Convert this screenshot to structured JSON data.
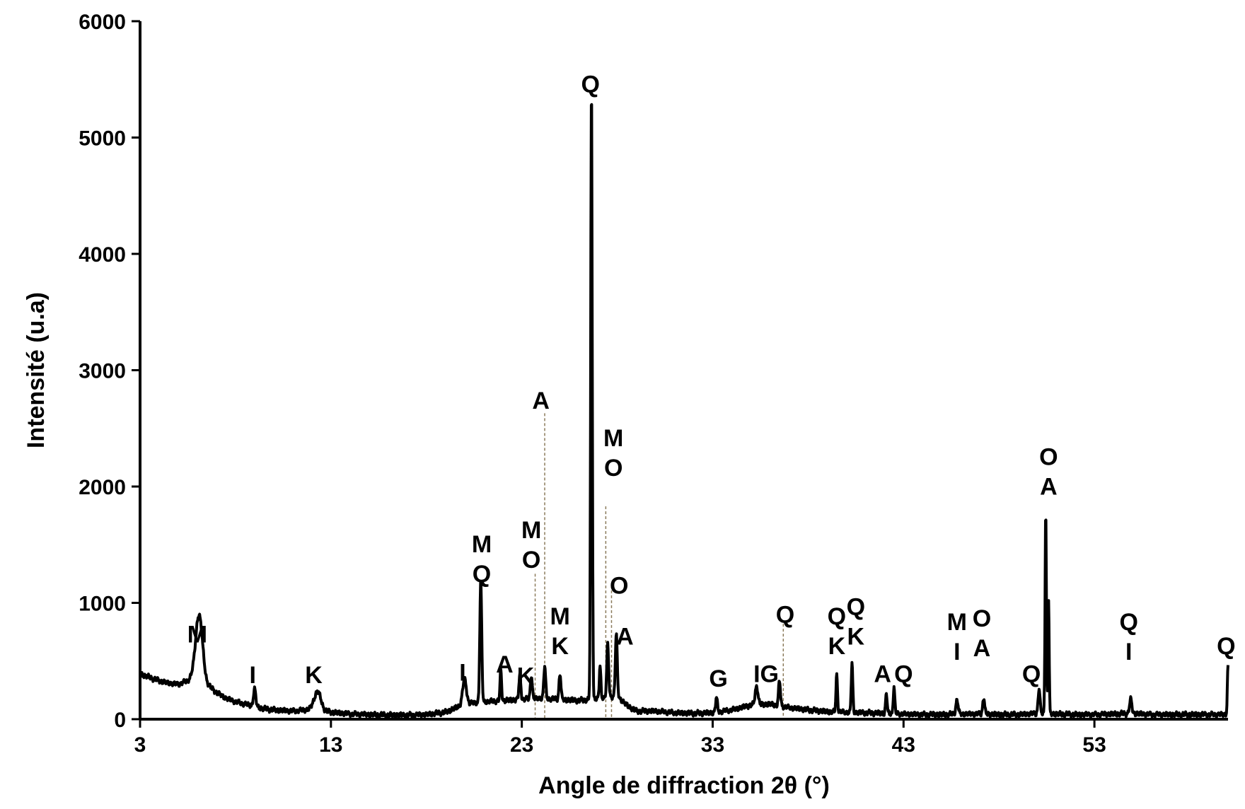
{
  "chart_data": {
    "type": "line",
    "title": "",
    "xlabel": "Angle de diffraction 2θ (°)",
    "ylabel": "Intensité (u.a)",
    "xlim": [
      3,
      60
    ],
    "ylim": [
      0,
      6000
    ],
    "x_ticks": [
      3,
      13,
      23,
      33,
      43,
      53
    ],
    "x_tick_labels": [
      "3",
      "13",
      "23",
      "33",
      "43",
      "53"
    ],
    "y_ticks": [
      0,
      1000,
      2000,
      3000,
      4000,
      5000,
      6000
    ],
    "y_tick_labels": [
      "0",
      "1000",
      "2000",
      "3000",
      "4000",
      "5000",
      "6000"
    ],
    "grid": false,
    "legend": "none",
    "baseline": [
      [
        3,
        390
      ],
      [
        3.5,
        360
      ],
      [
        4,
        330
      ],
      [
        4.5,
        310
      ],
      [
        5,
        300
      ],
      [
        5.5,
        330
      ],
      [
        6,
        420
      ],
      [
        6.5,
        300
      ],
      [
        7,
        230
      ],
      [
        7.5,
        180
      ],
      [
        8,
        150
      ],
      [
        8.5,
        130
      ],
      [
        9,
        110
      ],
      [
        9.5,
        90
      ],
      [
        10,
        80
      ],
      [
        11,
        70
      ],
      [
        12,
        85
      ],
      [
        13,
        60
      ],
      [
        14,
        45
      ],
      [
        15,
        40
      ],
      [
        16,
        35
      ],
      [
        17,
        35
      ],
      [
        18,
        40
      ],
      [
        19,
        60
      ],
      [
        20,
        130
      ],
      [
        21,
        150
      ],
      [
        22,
        160
      ],
      [
        23,
        170
      ],
      [
        24,
        180
      ],
      [
        25,
        170
      ],
      [
        26,
        160
      ],
      [
        27,
        180
      ],
      [
        28,
        200
      ],
      [
        28.5,
        120
      ],
      [
        29,
        70
      ],
      [
        30,
        70
      ],
      [
        31,
        55
      ],
      [
        32,
        50
      ],
      [
        33,
        55
      ],
      [
        34,
        80
      ],
      [
        35,
        120
      ],
      [
        36,
        130
      ],
      [
        37,
        100
      ],
      [
        38,
        80
      ],
      [
        39,
        65
      ],
      [
        40,
        60
      ],
      [
        41,
        55
      ],
      [
        42,
        50
      ],
      [
        43,
        45
      ],
      [
        44,
        40
      ],
      [
        45,
        40
      ],
      [
        46,
        45
      ],
      [
        47,
        45
      ],
      [
        48,
        40
      ],
      [
        49,
        40
      ],
      [
        50,
        50
      ],
      [
        51,
        45
      ],
      [
        52,
        40
      ],
      [
        53,
        40
      ],
      [
        54,
        45
      ],
      [
        55,
        50
      ],
      [
        56,
        40
      ],
      [
        57,
        40
      ],
      [
        58,
        40
      ],
      [
        59,
        40
      ],
      [
        60,
        40
      ]
    ],
    "peaks": [
      {
        "x": 6.1,
        "y": 500,
        "w": 0.35
      },
      {
        "x": 9.0,
        "y": 150,
        "w": 0.12
      },
      {
        "x": 12.3,
        "y": 160,
        "w": 0.35
      },
      {
        "x": 20.0,
        "y": 210,
        "w": 0.2
      },
      {
        "x": 20.85,
        "y": 1040,
        "w": 0.1
      },
      {
        "x": 21.9,
        "y": 260,
        "w": 0.08
      },
      {
        "x": 22.9,
        "y": 210,
        "w": 0.1
      },
      {
        "x": 23.5,
        "y": 200,
        "w": 0.1
      },
      {
        "x": 24.2,
        "y": 270,
        "w": 0.1
      },
      {
        "x": 25.0,
        "y": 220,
        "w": 0.1
      },
      {
        "x": 26.65,
        "y": 5260,
        "w": 0.08
      },
      {
        "x": 27.1,
        "y": 270,
        "w": 0.08
      },
      {
        "x": 27.5,
        "y": 450,
        "w": 0.1
      },
      {
        "x": 27.95,
        "y": 530,
        "w": 0.1
      },
      {
        "x": 33.2,
        "y": 120,
        "w": 0.1
      },
      {
        "x": 35.3,
        "y": 160,
        "w": 0.15
      },
      {
        "x": 36.5,
        "y": 210,
        "w": 0.1
      },
      {
        "x": 39.5,
        "y": 320,
        "w": 0.08
      },
      {
        "x": 40.3,
        "y": 420,
        "w": 0.08
      },
      {
        "x": 42.1,
        "y": 170,
        "w": 0.08
      },
      {
        "x": 42.5,
        "y": 230,
        "w": 0.08
      },
      {
        "x": 45.8,
        "y": 120,
        "w": 0.12
      },
      {
        "x": 47.2,
        "y": 140,
        "w": 0.1
      },
      {
        "x": 50.1,
        "y": 210,
        "w": 0.1
      },
      {
        "x": 50.45,
        "y": 1740,
        "w": 0.07
      },
      {
        "x": 50.6,
        "y": 980,
        "w": 0.06
      },
      {
        "x": 54.9,
        "y": 120,
        "w": 0.12
      },
      {
        "x": 60.0,
        "y": 420,
        "w": 0.07
      }
    ],
    "annotations": [
      {
        "lines": [
          "M"
        ],
        "x": 6.0,
        "y": 660
      },
      {
        "lines": [
          "I"
        ],
        "x": 8.9,
        "y": 310
      },
      {
        "lines": [
          "K"
        ],
        "x": 12.1,
        "y": 310
      },
      {
        "lines": [
          "I"
        ],
        "x": 19.9,
        "y": 330
      },
      {
        "lines": [
          "M",
          "Q"
        ],
        "x": 20.9,
        "y": 1180
      },
      {
        "lines": [
          "A"
        ],
        "x": 22.1,
        "y": 400
      },
      {
        "lines": [
          "K"
        ],
        "x": 23.2,
        "y": 300
      },
      {
        "lines": [
          "M",
          "O"
        ],
        "x": 23.5,
        "y": 1300
      },
      {
        "lines": [
          "A"
        ],
        "x": 24.0,
        "y": 2670
      },
      {
        "lines": [
          "M",
          "K"
        ],
        "x": 25.0,
        "y": 560
      },
      {
        "lines": [
          "Q"
        ],
        "x": 26.6,
        "y": 5390
      },
      {
        "lines": [
          "M",
          "O"
        ],
        "x": 27.8,
        "y": 2090
      },
      {
        "lines": [
          "O"
        ],
        "x": 28.1,
        "y": 1080
      },
      {
        "lines": [
          "A"
        ],
        "x": 28.4,
        "y": 640
      },
      {
        "lines": [
          "G"
        ],
        "x": 33.3,
        "y": 280
      },
      {
        "lines": [
          "IG"
        ],
        "x": 35.8,
        "y": 320
      },
      {
        "lines": [
          "Q"
        ],
        "x": 36.8,
        "y": 830
      },
      {
        "lines": [
          "Q",
          "K"
        ],
        "x": 39.5,
        "y": 560
      },
      {
        "lines": [
          "Q",
          "K"
        ],
        "x": 40.5,
        "y": 640
      },
      {
        "lines": [
          "A"
        ],
        "x": 41.9,
        "y": 320
      },
      {
        "lines": [
          "Q"
        ],
        "x": 43.0,
        "y": 320
      },
      {
        "lines": [
          "M",
          "I"
        ],
        "x": 45.8,
        "y": 510
      },
      {
        "lines": [
          "O",
          "A"
        ],
        "x": 47.1,
        "y": 540
      },
      {
        "lines": [
          "Q"
        ],
        "x": 49.7,
        "y": 320
      },
      {
        "lines": [
          "O",
          "A"
        ],
        "x": 50.6,
        "y": 1930
      },
      {
        "lines": [
          "Q",
          "I"
        ],
        "x": 54.8,
        "y": 510
      },
      {
        "lines": [
          "Q"
        ],
        "x": 59.9,
        "y": 560
      }
    ],
    "guides": [
      {
        "x": 23.7,
        "y_top": 1250
      },
      {
        "x": 24.2,
        "y_top": 2630
      },
      {
        "x": 27.4,
        "y_top": 1830
      },
      {
        "x": 27.7,
        "y_top": 1150
      },
      {
        "x": 36.7,
        "y_top": 820
      }
    ]
  }
}
